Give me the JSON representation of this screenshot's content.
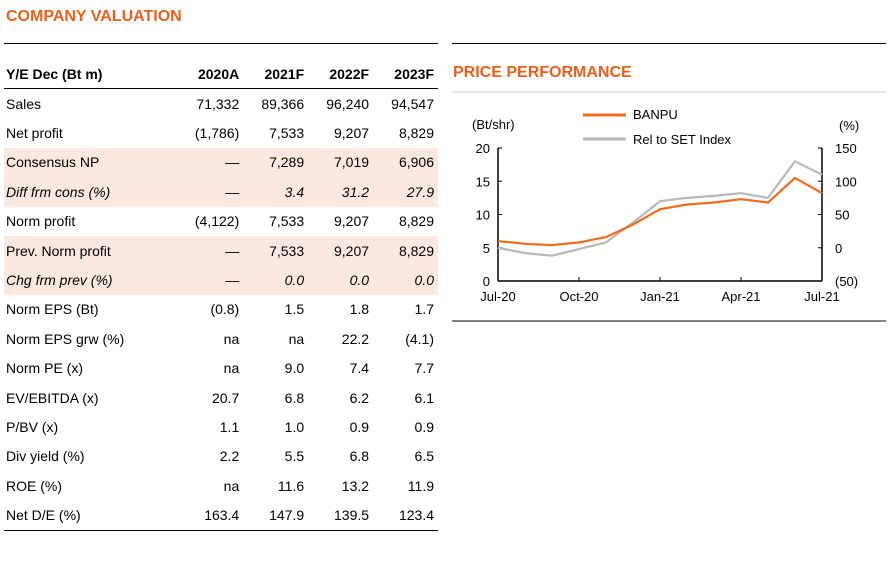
{
  "valuation": {
    "title": "COMPANY VALUATION",
    "header": [
      "Y/E Dec (Bt m)",
      "2020A",
      "2021F",
      "2022F",
      "2023F"
    ],
    "rows": [
      {
        "label": "Sales",
        "values": [
          "71,332",
          "89,366",
          "96,240",
          "94,547"
        ],
        "style": ""
      },
      {
        "label": "Net profit",
        "values": [
          "(1,786)",
          "7,533",
          "9,207",
          "8,829"
        ],
        "style": ""
      },
      {
        "label": "Consensus NP",
        "values": [
          "—",
          "7,289",
          "7,019",
          "6,906"
        ],
        "style": "hl"
      },
      {
        "label": "Diff frm cons (%)",
        "values": [
          "—",
          "3.4",
          "31.2",
          "27.9"
        ],
        "style": "hl it"
      },
      {
        "label": "Norm profit",
        "values": [
          "(4,122)",
          "7,533",
          "9,207",
          "8,829"
        ],
        "style": ""
      },
      {
        "label": "Prev. Norm profit",
        "values": [
          "—",
          "7,533",
          "9,207",
          "8,829"
        ],
        "style": "hl"
      },
      {
        "label": "Chg frm prev (%)",
        "values": [
          "—",
          "0.0",
          "0.0",
          "0.0"
        ],
        "style": "hl it"
      },
      {
        "label": "Norm EPS (Bt)",
        "values": [
          "(0.8)",
          "1.5",
          "1.8",
          "1.7"
        ],
        "style": ""
      },
      {
        "label": "Norm EPS grw (%)",
        "values": [
          "na",
          "na",
          "22.2",
          "(4.1)"
        ],
        "style": ""
      },
      {
        "label": "Norm PE (x)",
        "values": [
          "na",
          "9.0",
          "7.4",
          "7.7"
        ],
        "style": ""
      },
      {
        "label": "EV/EBITDA (x)",
        "values": [
          "20.7",
          "6.8",
          "6.2",
          "6.1"
        ],
        "style": ""
      },
      {
        "label": "P/BV (x)",
        "values": [
          "1.1",
          "1.0",
          "0.9",
          "0.9"
        ],
        "style": ""
      },
      {
        "label": "Div yield (%)",
        "values": [
          "2.2",
          "5.5",
          "6.8",
          "6.5"
        ],
        "style": ""
      },
      {
        "label": "ROE (%)",
        "values": [
          "na",
          "11.6",
          "13.2",
          "11.9"
        ],
        "style": ""
      },
      {
        "label": "Net D/E (%)",
        "values": [
          "163.4",
          "147.9",
          "139.5",
          "123.4"
        ],
        "style": "last"
      }
    ]
  },
  "chart_data": {
    "type": "line",
    "title": "PRICE PERFORMANCE",
    "ylabel_left": "(Bt/shr)",
    "ylabel_right": "(%)",
    "y_left_ticks": [
      "0",
      "5",
      "10",
      "15",
      "20"
    ],
    "y_right_ticks": [
      "(50)",
      "0",
      "50",
      "100",
      "150"
    ],
    "ylim_left": [
      0,
      20
    ],
    "ylim_right": [
      -50,
      150
    ],
    "x_ticks": [
      "Jul-20",
      "Oct-20",
      "Jan-21",
      "Apr-21",
      "Jul-21"
    ],
    "legend_position": "top",
    "series": [
      {
        "name": "BANPU",
        "axis": "left",
        "color": "#f26a1b",
        "x": [
          "Jul-20",
          "Aug-20",
          "Sep-20",
          "Oct-20",
          "Nov-20",
          "Dec-20",
          "Jan-21",
          "Feb-21",
          "Mar-21",
          "Apr-21",
          "May-21",
          "Jun-21",
          "Jul-21"
        ],
        "values": [
          6.0,
          5.6,
          5.4,
          5.8,
          6.6,
          8.5,
          10.8,
          11.5,
          11.8,
          12.3,
          11.8,
          15.5,
          13.2
        ]
      },
      {
        "name": "Rel to SET Index",
        "axis": "right",
        "color": "#b8b8b8",
        "x": [
          "Jul-20",
          "Aug-20",
          "Sep-20",
          "Oct-20",
          "Nov-20",
          "Dec-20",
          "Jan-21",
          "Feb-21",
          "Mar-21",
          "Apr-21",
          "May-21",
          "Jun-21",
          "Jul-21"
        ],
        "values": [
          0,
          -8,
          -12,
          -2,
          8,
          38,
          70,
          75,
          78,
          82,
          75,
          130,
          110
        ]
      }
    ]
  }
}
